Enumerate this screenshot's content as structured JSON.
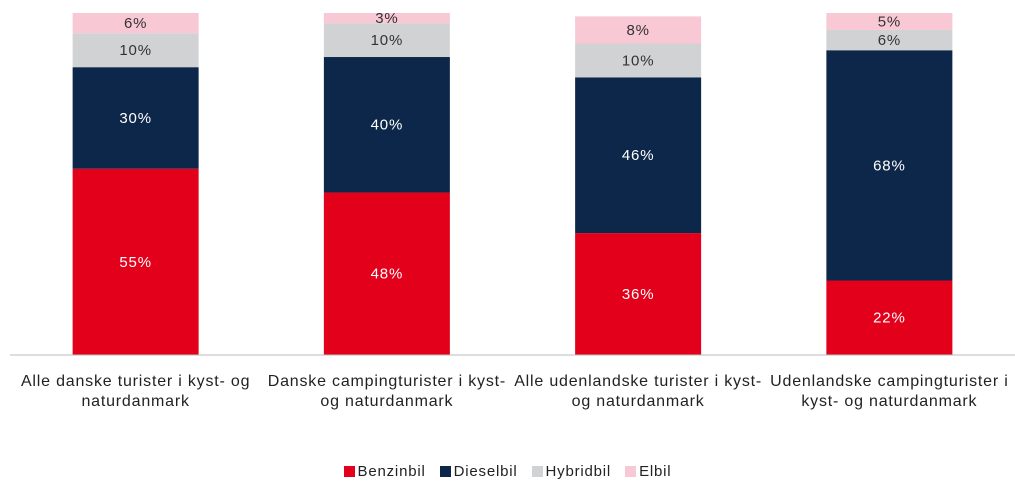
{
  "chart_data": {
    "type": "stacked_bar",
    "categories": [
      "Alle danske turister i kyst- og naturdanmark",
      "Danske campingturister i kyst- og naturdanmark",
      "Alle udenlandske turister i kyst- og naturdanmark",
      "Udenlandske campingturister i kyst- og naturdanmark"
    ],
    "series": [
      {
        "name": "Benzinbil",
        "color": "#e2001a",
        "values": [
          55,
          48,
          36,
          22
        ],
        "value_labels": [
          "55%",
          "48%",
          "36%",
          "22%"
        ]
      },
      {
        "name": "Dieselbil",
        "color": "#0c2749",
        "values": [
          30,
          40,
          46,
          68
        ],
        "value_labels": [
          "30%",
          "40%",
          "46%",
          "68%"
        ]
      },
      {
        "name": "Hybridbil",
        "color": "#d0d2d3",
        "values": [
          10,
          10,
          10,
          6
        ],
        "value_labels": [
          "10%",
          "10%",
          "10%",
          "6%"
        ]
      },
      {
        "name": "Elbil",
        "color": "#f8c8d4",
        "values": [
          6,
          3,
          8,
          5
        ],
        "value_labels": [
          "6%",
          "3%",
          "8%",
          "5%"
        ]
      }
    ],
    "legend": "bottom"
  }
}
